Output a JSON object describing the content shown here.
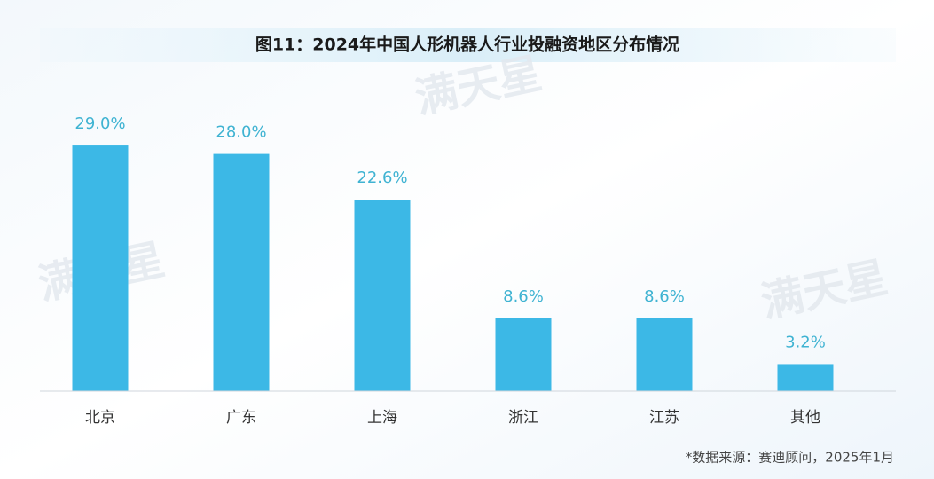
{
  "chart_data": {
    "type": "bar",
    "title": "图11：2024年中国人形机器人行业投融资地区分布情况",
    "categories": [
      "北京",
      "广东",
      "上海",
      "浙江",
      "江苏",
      "其他"
    ],
    "values": [
      29.0,
      28.0,
      22.6,
      8.6,
      8.6,
      3.2
    ],
    "value_labels": [
      "29.0%",
      "28.0%",
      "22.6%",
      "8.6%",
      "8.6%",
      "3.2%"
    ],
    "color": "#3cb8e6",
    "source": "*数据来源：赛迪顾问，2025年1月",
    "watermark": "满天星"
  }
}
